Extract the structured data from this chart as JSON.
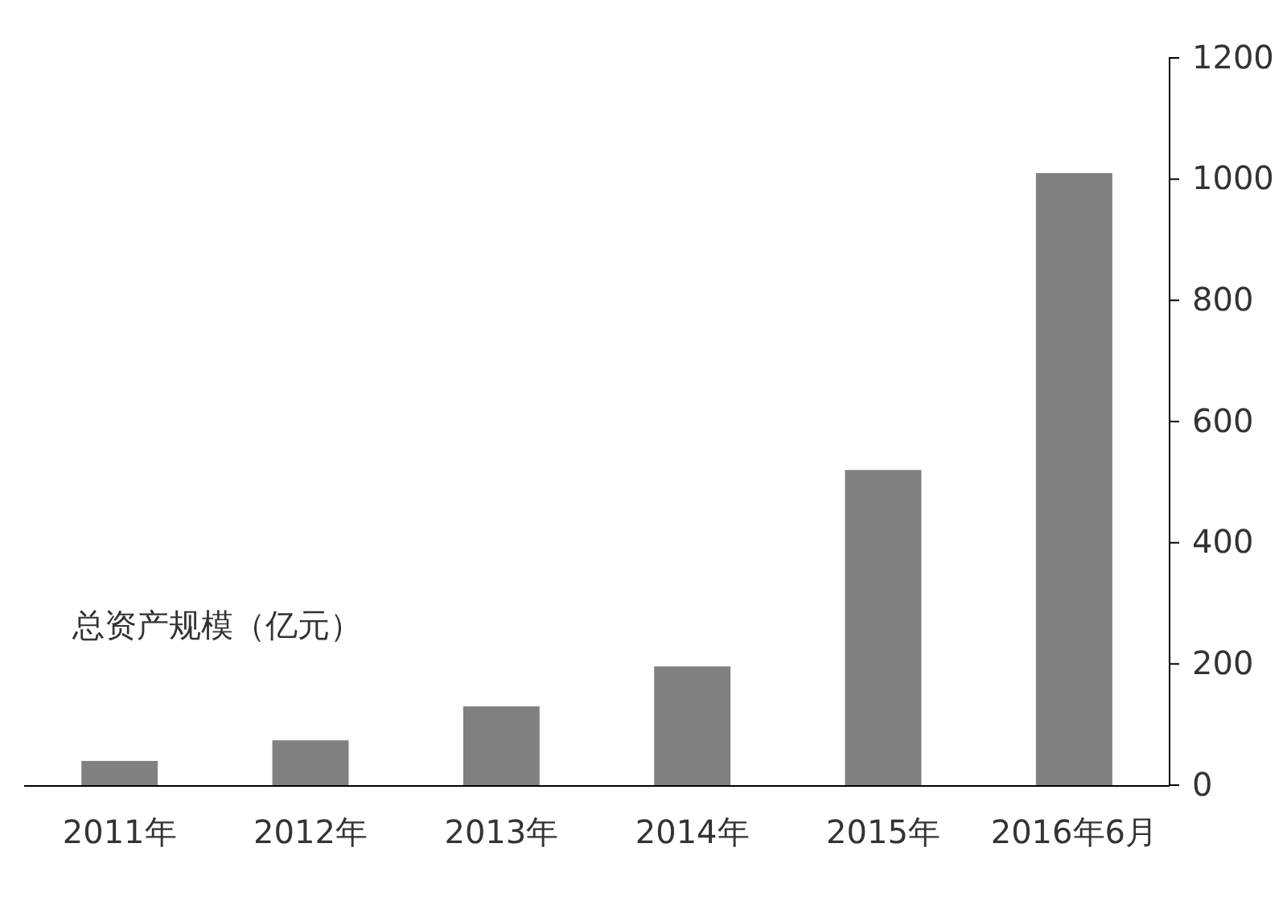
{
  "chart_data": {
    "type": "bar",
    "ylabel": "总资产规模（亿元）",
    "categories": [
      "2011年",
      "2012年",
      "2013年",
      "2014年",
      "2015年",
      "2016年6月"
    ],
    "values": [
      40,
      74,
      130,
      196,
      520,
      1010
    ],
    "color": "#808080",
    "ylim": [
      0,
      1200
    ],
    "yticks": [
      0,
      200,
      400,
      600,
      800,
      1000,
      1200
    ],
    "grid": false
  }
}
